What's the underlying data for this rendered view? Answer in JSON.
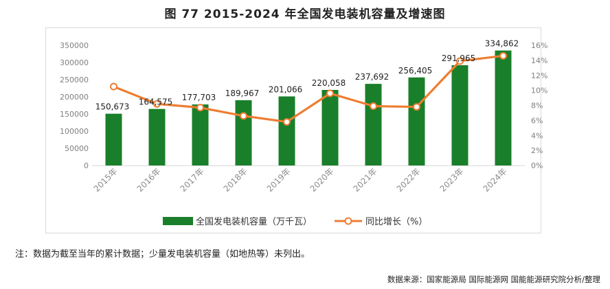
{
  "title": "图 77 2015-2024 年全国发电装机容量及增速图",
  "note": "注：数据为截至当年的累计数据；少量发电装机容量（如地热等）未列出。",
  "source": "数据来源：国家能源局 国际能源网 国能能源研究院分析/整理",
  "colors": {
    "bar": "#1a7f2a",
    "line": "#ed7d31",
    "axis_text": "#7f7f7f",
    "label_text": "#222222"
  },
  "chart_data": {
    "type": "bar+line",
    "categories": [
      "2015年",
      "2016年",
      "2017年",
      "2018年",
      "2019年",
      "2020年",
      "2021年",
      "2022年",
      "2023年",
      "2024年"
    ],
    "series": [
      {
        "name": "全国发电装机容量（万千瓦）",
        "type": "bar",
        "axis": "left",
        "values": [
          150673,
          164575,
          177703,
          189967,
          201066,
          220058,
          237692,
          256405,
          291965,
          334862
        ],
        "labels": [
          "150,673",
          "164,575",
          "177,703",
          "189,967",
          "201,066",
          "220,058",
          "237,692",
          "256,405",
          "291,965",
          "334,862"
        ]
      },
      {
        "name": "同比增长（%）",
        "type": "line",
        "axis": "right",
        "values": [
          10.5,
          8.2,
          7.7,
          6.6,
          5.8,
          9.6,
          7.9,
          7.8,
          13.9,
          14.6
        ]
      }
    ],
    "y_left": {
      "min": 0,
      "max": 350000,
      "ticks": [
        "0",
        "50000",
        "100000",
        "150000",
        "200000",
        "250000",
        "300000",
        "350000"
      ]
    },
    "y_right": {
      "min": 0,
      "max": 16,
      "ticks": [
        "0%",
        "2%",
        "4%",
        "6%",
        "8%",
        "10%",
        "12%",
        "14%",
        "16%"
      ]
    },
    "legend_position": "bottom",
    "grid": false
  }
}
